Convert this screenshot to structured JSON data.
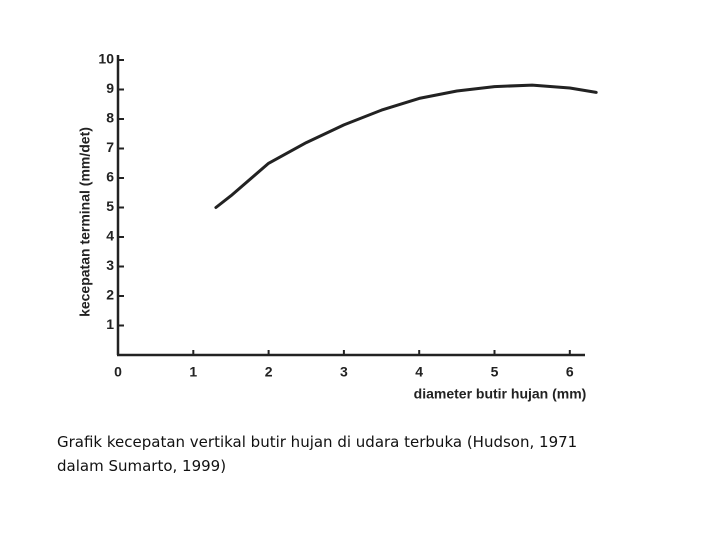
{
  "chart_data": {
    "type": "line",
    "x": [
      1.3,
      1.5,
      2,
      2.5,
      3,
      3.5,
      4,
      4.5,
      5,
      5.5,
      6,
      6.35
    ],
    "values": [
      5,
      5.4,
      6.5,
      7.2,
      7.8,
      8.3,
      8.7,
      8.95,
      9.1,
      9.15,
      9.05,
      8.9
    ],
    "color": "#222222",
    "xlabel": "diameter butir hujan (mm)",
    "ylabel": "kecepatan terminal (mm/det)",
    "xlim": [
      0,
      6.4
    ],
    "xticks": [
      0,
      1,
      2,
      3,
      4,
      5,
      6
    ],
    "ylim": [
      0,
      10
    ],
    "yticks": [
      1,
      2,
      3,
      4,
      5,
      6,
      7,
      8,
      9,
      10
    ],
    "grid": false
  },
  "caption": [
    "Grafik kecepatan vertikal butir hujan di udara terbuka (Hudson, 1971",
    "dalam Sumarto, 1999)"
  ]
}
